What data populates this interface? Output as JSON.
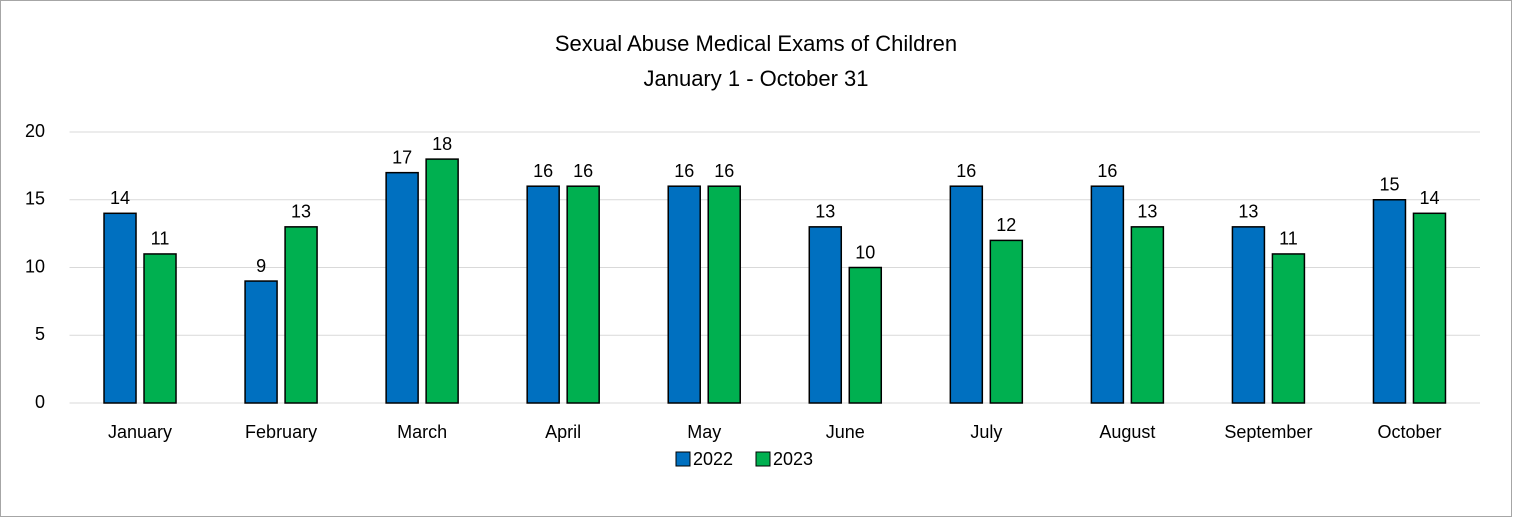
{
  "chart_data": {
    "type": "bar",
    "title": "Sexual Abuse Medical Exams of Children",
    "subtitle": "January 1 - October 31",
    "categories": [
      "January",
      "February",
      "March",
      "April",
      "May",
      "June",
      "July",
      "August",
      "September",
      "October"
    ],
    "series": [
      {
        "name": "2022",
        "color": "#0070c0",
        "values": [
          14,
          9,
          17,
          16,
          16,
          13,
          16,
          16,
          13,
          15
        ]
      },
      {
        "name": "2023",
        "color": "#00b050",
        "values": [
          11,
          13,
          18,
          16,
          16,
          10,
          12,
          13,
          11,
          14
        ]
      }
    ],
    "ylim": [
      0,
      20
    ],
    "yticks": [
      0,
      5,
      10,
      15,
      20
    ],
    "grid": true,
    "legend": "bottom"
  }
}
